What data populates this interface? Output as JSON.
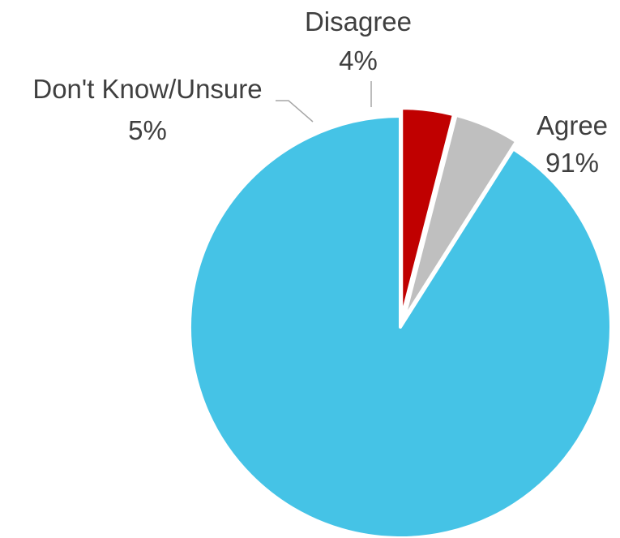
{
  "chart_data": {
    "type": "pie",
    "categories": [
      "Agree",
      "Don't Know/Unsure",
      "Disagree"
    ],
    "values": [
      91,
      5,
      4
    ],
    "labels": [
      "91%",
      "5%",
      "4%"
    ],
    "colors": [
      "#45c3e6",
      "#bfbfbf",
      "#c00000"
    ],
    "start": "12 o'clock",
    "direction": "clockwise",
    "legend": "none"
  }
}
